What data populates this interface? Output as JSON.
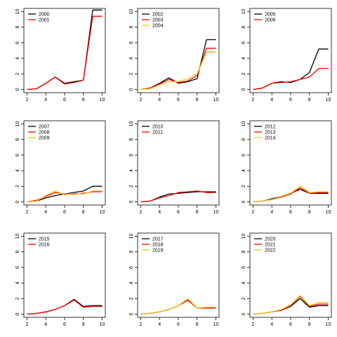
{
  "colors": {
    "black": "#000000",
    "red": "#ff0000",
    "orange": "#f5c518"
  },
  "chart_data": [
    {
      "type": "line",
      "xlim": [
        2,
        10
      ],
      "ylim": [
        0,
        10
      ],
      "x": [
        2,
        3,
        4,
        5,
        6,
        7,
        8,
        9,
        10
      ],
      "xticks": [
        2,
        4,
        6,
        8,
        10
      ],
      "yticks": [
        0,
        2,
        4,
        6,
        8,
        10
      ],
      "legend": "top-left",
      "series": [
        {
          "name": "2000",
          "color": "black",
          "values": [
            0,
            0.1,
            0.8,
            1.6,
            0.8,
            1.0,
            1.2,
            10.2,
            10.2
          ]
        },
        {
          "name": "2001",
          "color": "red",
          "values": [
            0,
            0.1,
            0.8,
            1.6,
            0.7,
            0.9,
            1.2,
            9.4,
            9.4
          ]
        }
      ]
    },
    {
      "type": "line",
      "xlim": [
        2,
        10
      ],
      "ylim": [
        0,
        10
      ],
      "x": [
        2,
        3,
        4,
        5,
        6,
        7,
        8,
        9,
        10
      ],
      "xticks": [
        2,
        4,
        6,
        8,
        10
      ],
      "yticks": [
        0,
        2,
        4,
        6,
        8,
        10
      ],
      "legend": "top-left",
      "series": [
        {
          "name": "2002",
          "color": "black",
          "values": [
            0,
            0.2,
            0.8,
            1.5,
            0.8,
            1.0,
            1.4,
            6.4,
            6.4
          ]
        },
        {
          "name": "2003",
          "color": "red",
          "values": [
            0,
            0.2,
            0.7,
            1.3,
            0.9,
            1.1,
            1.8,
            5.3,
            5.3
          ]
        },
        {
          "name": "2004",
          "color": "orange",
          "values": [
            0,
            0.1,
            0.6,
            1.0,
            1.0,
            1.4,
            2.0,
            4.8,
            4.8
          ]
        }
      ]
    },
    {
      "type": "line",
      "xlim": [
        2,
        10
      ],
      "ylim": [
        0,
        10
      ],
      "x": [
        2,
        3,
        4,
        5,
        6,
        7,
        8,
        9,
        10
      ],
      "xticks": [
        2,
        4,
        6,
        8,
        10
      ],
      "yticks": [
        0,
        2,
        4,
        6,
        8,
        10
      ],
      "legend": "top-left",
      "series": [
        {
          "name": "2005",
          "color": "black",
          "values": [
            0,
            0.2,
            0.8,
            1.0,
            0.9,
            1.3,
            2.2,
            5.2,
            5.2
          ]
        },
        {
          "name": "2006",
          "color": "red",
          "values": [
            0,
            0.2,
            0.8,
            0.9,
            1.0,
            1.3,
            1.6,
            2.7,
            2.7
          ]
        }
      ]
    },
    {
      "type": "line",
      "xlim": [
        2,
        10
      ],
      "ylim": [
        0,
        10
      ],
      "x": [
        2,
        3,
        4,
        5,
        6,
        7,
        8,
        9,
        10
      ],
      "xticks": [
        2,
        4,
        6,
        8,
        10
      ],
      "yticks": [
        0,
        2,
        4,
        6,
        8,
        10
      ],
      "legend": "top-left",
      "series": [
        {
          "name": "2007",
          "color": "black",
          "values": [
            0,
            0.1,
            0.5,
            0.8,
            1.0,
            1.2,
            1.4,
            2.0,
            2.0
          ]
        },
        {
          "name": "2008",
          "color": "red",
          "values": [
            0,
            0.2,
            0.7,
            1.2,
            1.0,
            1.0,
            1.1,
            1.3,
            1.3
          ]
        },
        {
          "name": "2009",
          "color": "orange",
          "values": [
            0,
            0.1,
            0.8,
            1.4,
            0.9,
            1.1,
            1.0,
            1.4,
            1.4
          ]
        }
      ]
    },
    {
      "type": "line",
      "xlim": [
        2,
        10
      ],
      "ylim": [
        0,
        10
      ],
      "x": [
        2,
        3,
        4,
        5,
        6,
        7,
        8,
        9,
        10
      ],
      "xticks": [
        2,
        4,
        6,
        8,
        10
      ],
      "yticks": [
        0,
        2,
        4,
        6,
        8,
        10
      ],
      "legend": "top-left",
      "series": [
        {
          "name": "2010",
          "color": "black",
          "values": [
            0,
            0.1,
            0.6,
            1.0,
            1.1,
            1.2,
            1.3,
            1.3,
            1.3
          ]
        },
        {
          "name": "2011",
          "color": "red",
          "values": [
            0,
            0.1,
            0.5,
            0.8,
            1.2,
            1.3,
            1.4,
            1.2,
            1.2
          ]
        }
      ]
    },
    {
      "type": "line",
      "xlim": [
        2,
        10
      ],
      "ylim": [
        0,
        10
      ],
      "x": [
        2,
        3,
        4,
        5,
        6,
        7,
        8,
        9,
        10
      ],
      "xticks": [
        2,
        4,
        6,
        8,
        10
      ],
      "yticks": [
        0,
        2,
        4,
        6,
        8,
        10
      ],
      "legend": "top-left",
      "series": [
        {
          "name": "2012",
          "color": "black",
          "values": [
            0,
            0.1,
            0.4,
            0.7,
            1.1,
            1.6,
            1.1,
            1.1,
            1.1
          ]
        },
        {
          "name": "2013",
          "color": "red",
          "values": [
            0,
            0.1,
            0.3,
            0.6,
            1.0,
            1.8,
            1.1,
            1.2,
            1.2
          ]
        },
        {
          "name": "2014",
          "color": "orange",
          "values": [
            0,
            0.1,
            0.3,
            0.7,
            1.1,
            2.0,
            1.2,
            1.3,
            1.3
          ]
        }
      ]
    },
    {
      "type": "line",
      "xlim": [
        2,
        10
      ],
      "ylim": [
        0,
        10
      ],
      "x": [
        2,
        3,
        4,
        5,
        6,
        7,
        8,
        9,
        10
      ],
      "xticks": [
        2,
        4,
        6,
        8,
        10
      ],
      "yticks": [
        0,
        2,
        4,
        6,
        8,
        10
      ],
      "legend": "top-left",
      "series": [
        {
          "name": "2015",
          "color": "black",
          "values": [
            0,
            0.1,
            0.3,
            0.6,
            1.1,
            1.9,
            1.0,
            1.1,
            1.1
          ]
        },
        {
          "name": "2016",
          "color": "red",
          "values": [
            0,
            0.1,
            0.3,
            0.6,
            1.1,
            1.8,
            0.9,
            1.0,
            1.0
          ]
        }
      ]
    },
    {
      "type": "line",
      "xlim": [
        2,
        10
      ],
      "ylim": [
        0,
        10
      ],
      "x": [
        2,
        3,
        4,
        5,
        6,
        7,
        8,
        9,
        10
      ],
      "xticks": [
        2,
        4,
        6,
        8,
        10
      ],
      "yticks": [
        0,
        2,
        4,
        6,
        8,
        10
      ],
      "legend": "top-left",
      "series": [
        {
          "name": "2017",
          "color": "black",
          "values": [
            0,
            0.1,
            0.3,
            0.6,
            1.1,
            1.8,
            0.8,
            0.8,
            0.8
          ]
        },
        {
          "name": "2018",
          "color": "red",
          "values": [
            0,
            0.1,
            0.3,
            0.6,
            1.1,
            1.8,
            0.8,
            0.8,
            0.8
          ]
        },
        {
          "name": "2019",
          "color": "orange",
          "values": [
            0,
            0.1,
            0.3,
            0.6,
            1.1,
            2.0,
            0.8,
            0.9,
            0.9
          ]
        }
      ]
    },
    {
      "type": "line",
      "xlim": [
        2,
        10
      ],
      "ylim": [
        0,
        10
      ],
      "x": [
        2,
        3,
        4,
        5,
        6,
        7,
        8,
        9,
        10
      ],
      "xticks": [
        2,
        4,
        6,
        8,
        10
      ],
      "yticks": [
        0,
        2,
        4,
        6,
        8,
        10
      ],
      "legend": "top-left",
      "series": [
        {
          "name": "2020",
          "color": "black",
          "values": [
            0,
            0.1,
            0.3,
            0.5,
            1.0,
            2.0,
            0.9,
            1.1,
            1.1
          ]
        },
        {
          "name": "2021",
          "color": "red",
          "values": [
            0,
            0.1,
            0.3,
            0.5,
            1.1,
            2.3,
            1.0,
            1.3,
            1.3
          ]
        },
        {
          "name": "2022",
          "color": "orange",
          "values": [
            0,
            0.1,
            0.3,
            0.6,
            1.2,
            2.4,
            1.1,
            1.5,
            1.5
          ]
        }
      ]
    }
  ]
}
